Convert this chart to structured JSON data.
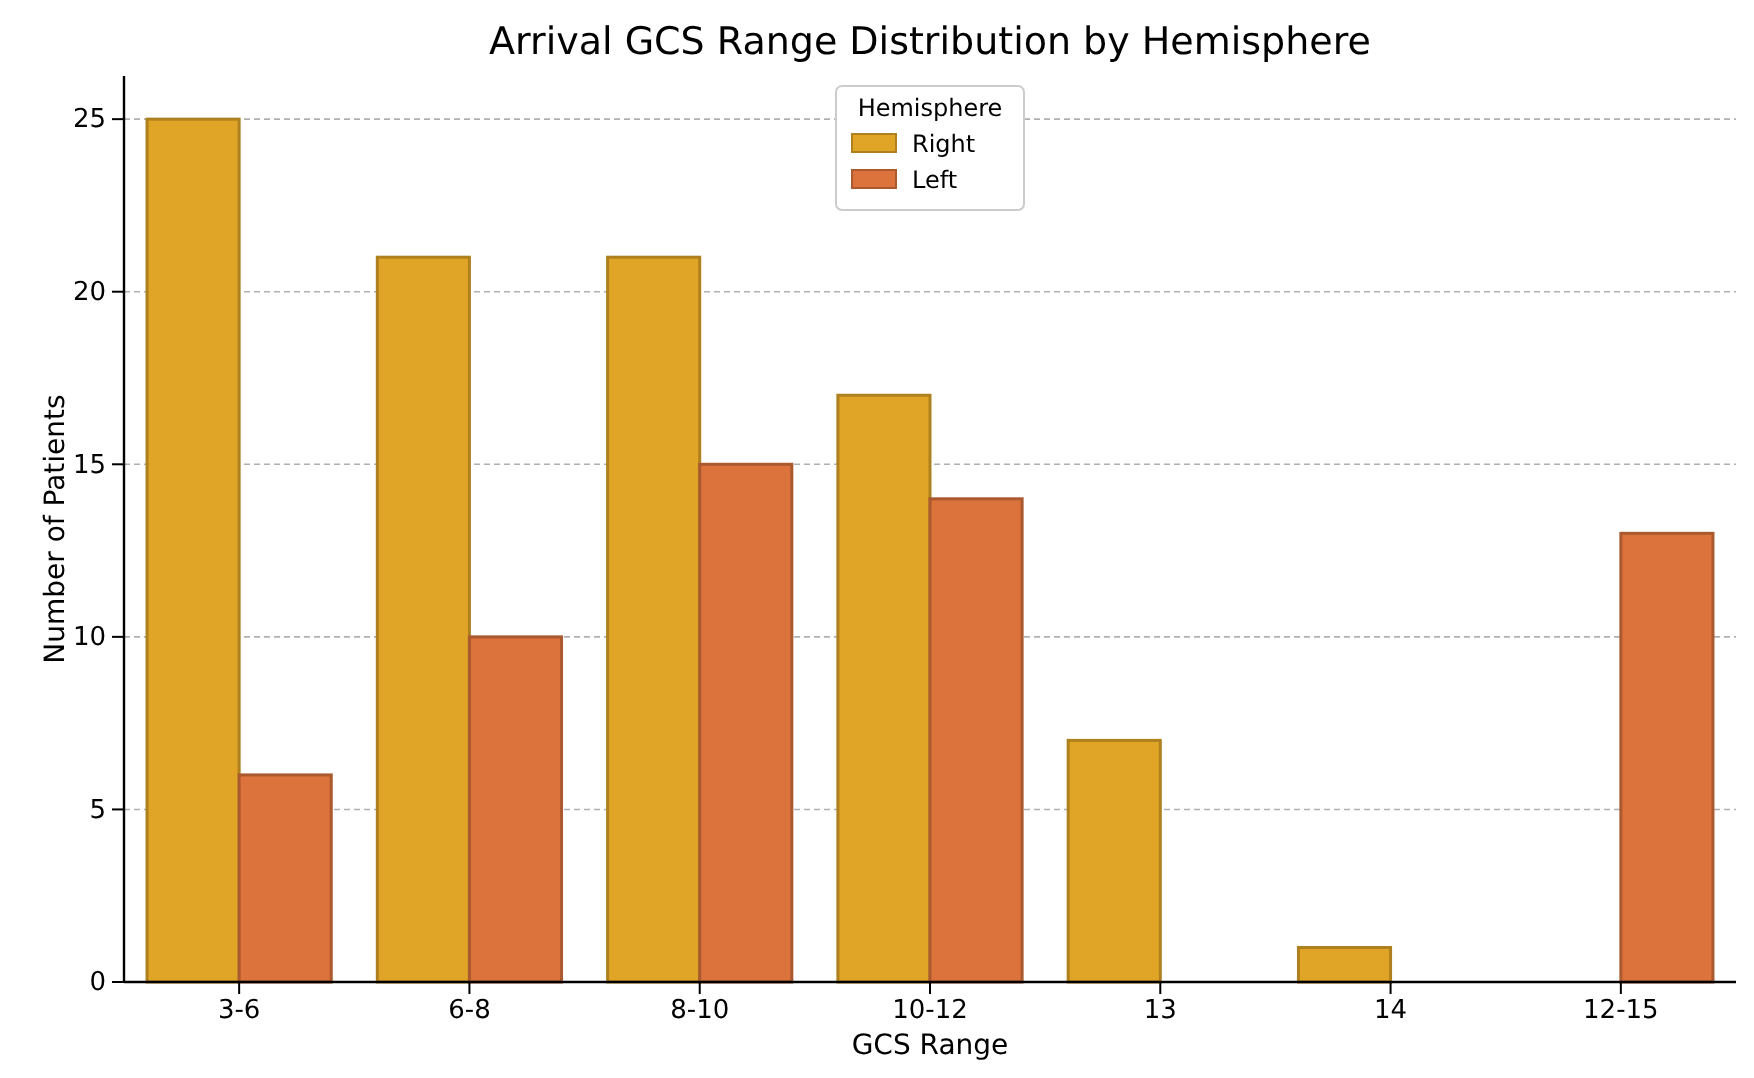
{
  "chart_data": {
    "type": "bar",
    "title": "Arrival GCS Range Distribution by Hemisphere",
    "xlabel": "GCS Range",
    "ylabel": "Number of Patients",
    "legend_title": "Hemisphere",
    "categories": [
      "3-6",
      "6-8",
      "8-10",
      "10-12",
      "13",
      "14",
      "12-15"
    ],
    "series": [
      {
        "name": "Right",
        "color": "#e0a526",
        "values": [
          25,
          21,
          21,
          17,
          7,
          1,
          0
        ]
      },
      {
        "name": "Left",
        "color": "#dc723c",
        "values": [
          6,
          10,
          15,
          14,
          0,
          0,
          13
        ]
      }
    ],
    "ylim": [
      0,
      26.25
    ],
    "yticks": [
      0,
      5,
      10,
      15,
      20,
      25
    ],
    "grid": "y",
    "legend": "top"
  }
}
